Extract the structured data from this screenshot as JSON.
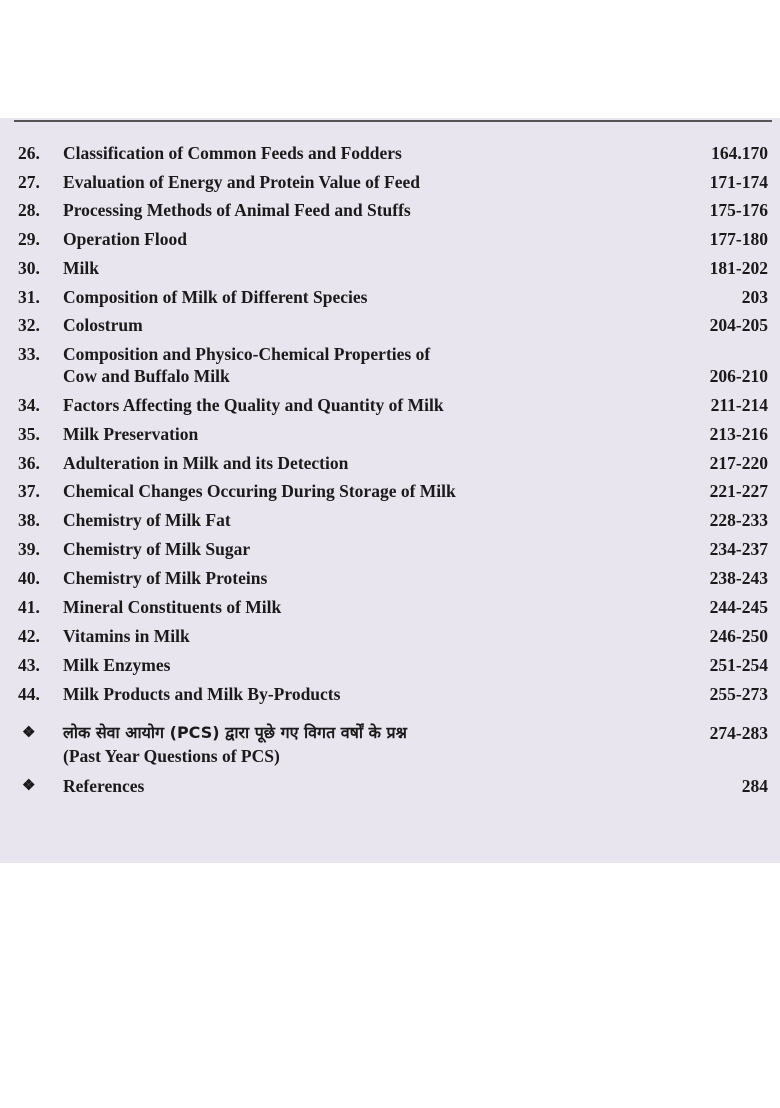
{
  "toc": [
    {
      "num": "26.",
      "title": "Classification of Common  Feeds and Fodders",
      "pages": "164.170"
    },
    {
      "num": "27.",
      "title": "Evaluation of Energy and Protein Value of Feed",
      "pages": "171-174"
    },
    {
      "num": "28.",
      "title": "Processing Methods of Animal Feed and Stuffs",
      "pages": "175-176"
    },
    {
      "num": "29.",
      "title": "Operation Flood",
      "pages": "177-180"
    },
    {
      "num": "30.",
      "title": "Milk",
      "pages": "181-202"
    },
    {
      "num": "31.",
      "title": "Composition of Milk of Different Species",
      "pages": "203"
    },
    {
      "num": "32.",
      "title": "Colostrum",
      "pages": "204-205"
    },
    {
      "num": "33.",
      "title": "Composition and Physico-Chemical Properties of",
      "title2": "Cow and Buffalo Milk",
      "pages": "206-210"
    },
    {
      "num": "34.",
      "title": "Factors Affecting the Quality and Quantity of Milk",
      "pages": "211-214"
    },
    {
      "num": "35.",
      "title": "Milk Preservation",
      "pages": "213-216"
    },
    {
      "num": "36.",
      "title": "Adulteration in Milk and its Detection",
      "pages": "217-220"
    },
    {
      "num": "37.",
      "title": "Chemical Changes Occuring During Storage of Milk",
      "pages": "221-227"
    },
    {
      "num": "38.",
      "title": "Chemistry of Milk Fat",
      "pages": "228-233"
    },
    {
      "num": "39.",
      "title": "Chemistry of Milk Sugar",
      "pages": "234-237"
    },
    {
      "num": "40.",
      "title": "Chemistry of Milk Proteins",
      "pages": "238-243"
    },
    {
      "num": "41.",
      "title": "Mineral Constituents of Milk",
      "pages": "244-245"
    },
    {
      "num": "42.",
      "title": "Vitamins in Milk",
      "pages": "246-250"
    },
    {
      "num": "43.",
      "title": "Milk Enzymes",
      "pages": "251-254"
    },
    {
      "num": "44.",
      "title": "Milk Products and Milk By-Products",
      "pages": "255-273"
    }
  ],
  "extras": [
    {
      "bullet": "❖",
      "title": "लोक सेवा आयोग (PCS) द्वारा पूछे गए विगत वर्षों के प्रश्न",
      "title2": "(Past Year Questions of PCS)",
      "pages": "274-283"
    },
    {
      "bullet": "❖",
      "title": "References",
      "pages": "284"
    }
  ]
}
